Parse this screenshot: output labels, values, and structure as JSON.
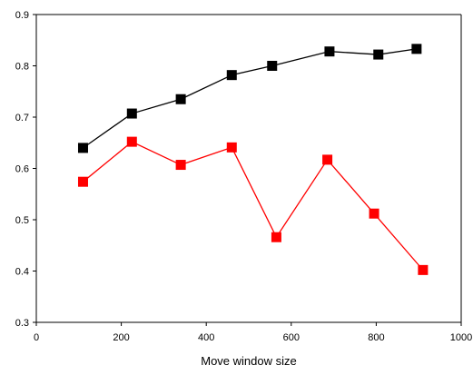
{
  "chart_data": {
    "type": "line",
    "title": "",
    "xlabel": "Move window size",
    "ylabel": "",
    "xlim": [
      0,
      1000
    ],
    "ylim": [
      0.3,
      0.9
    ],
    "x_ticks": [
      0,
      200,
      400,
      600,
      800,
      1000
    ],
    "x_tick_labels": [
      "0",
      "200",
      "400",
      "600",
      "800",
      "1000"
    ],
    "y_ticks": [
      0.3,
      0.4,
      0.5,
      0.6,
      0.7,
      0.8,
      0.9
    ],
    "y_tick_labels": [
      "0.3",
      "0.4",
      "0.5",
      "0.6",
      "0.7",
      "0.8",
      "0.9"
    ],
    "grid": false,
    "legend": "none",
    "series": [
      {
        "color": "#000000",
        "marker": "square",
        "x": [
          110,
          225,
          340,
          460,
          555,
          690,
          805,
          895
        ],
        "y": [
          0.64,
          0.707,
          0.735,
          0.782,
          0.8,
          0.828,
          0.822,
          0.833
        ]
      },
      {
        "color": "#ff0000",
        "marker": "square",
        "x": [
          110,
          225,
          340,
          460,
          565,
          685,
          795,
          910
        ],
        "y": [
          0.574,
          0.652,
          0.607,
          0.641,
          0.466,
          0.617,
          0.512,
          0.402
        ]
      }
    ]
  }
}
